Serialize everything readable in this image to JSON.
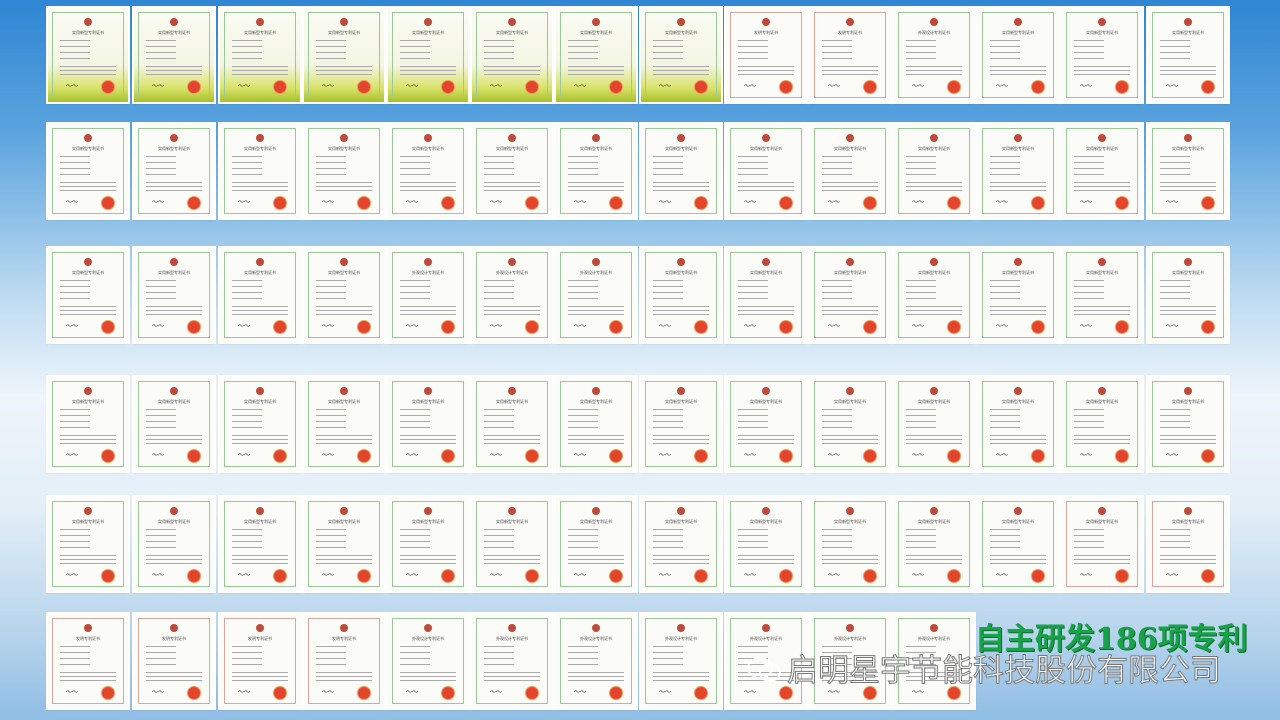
{
  "headline": "自主研发186项专利",
  "watermark": {
    "icon": "wechat-icon",
    "text": "启明星宇节能科技股份有限公司"
  },
  "cert_titles": {
    "U": "实用新型专利证书",
    "I": "发明专利证书",
    "D": "外观设计专利证书"
  },
  "certificate_rows": [
    [
      "UY",
      "UY",
      "UY",
      "UY",
      "UY",
      "UY",
      "UY",
      "UY",
      "IP",
      "IP",
      "D",
      "U",
      "U",
      "U"
    ],
    [
      "U",
      "U",
      "U",
      "U",
      "U",
      "U",
      "U",
      "U",
      "U",
      "U",
      "U",
      "U",
      "U",
      "U"
    ],
    [
      "U",
      "U",
      "U",
      "U",
      "D",
      "D",
      "D",
      "U",
      "U",
      "U",
      "U",
      "U",
      "U",
      "U"
    ],
    [
      "U",
      "U",
      "U",
      "U",
      "U",
      "U",
      "U",
      "U",
      "U",
      "U",
      "U",
      "U",
      "U",
      "U"
    ],
    [
      "U",
      "U",
      "U",
      "U",
      "U",
      "U",
      "U",
      "U",
      "U",
      "U",
      "U",
      "U",
      "UP",
      "UP"
    ],
    [
      "IP",
      "IP",
      "IP",
      "IP",
      "D",
      "D",
      "D",
      "D",
      "D",
      "D",
      "D"
    ]
  ],
  "colors": {
    "headline": "#18a24a",
    "background_top": "#2f86d3",
    "seal": "#e2452c"
  }
}
